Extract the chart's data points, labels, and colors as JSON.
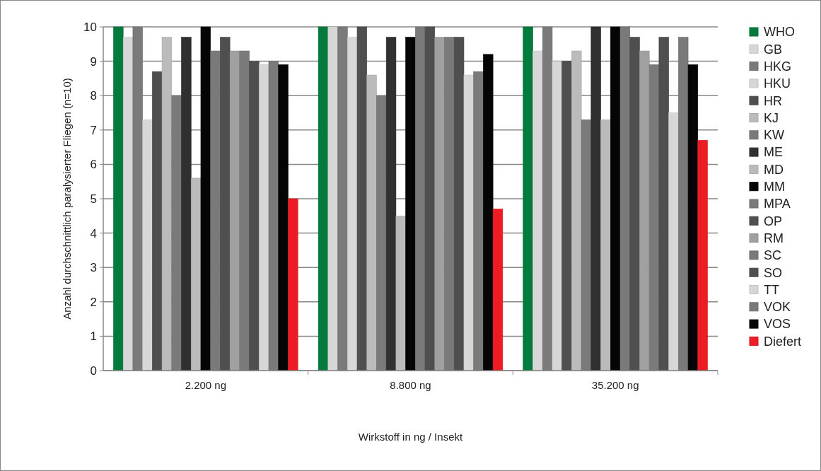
{
  "chart_data": {
    "type": "bar",
    "xlabel": "Wirkstoff in ng / Insekt",
    "ylabel": "Anzahl durchschnittlich paralysierter Fliegen (n=10)",
    "categories": [
      "2.200 ng",
      "8.800 ng",
      "35.200 ng"
    ],
    "ylim": [
      0,
      10
    ],
    "yticks": [
      0,
      1,
      2,
      3,
      4,
      5,
      6,
      7,
      8,
      9,
      10
    ],
    "grid": "y",
    "legend": "right",
    "series": [
      {
        "name": "WHO",
        "color": "#047a3c",
        "values": [
          10,
          10,
          10
        ]
      },
      {
        "name": "GB",
        "color": "#d7d7d7",
        "values": [
          9.7,
          10,
          9.3
        ]
      },
      {
        "name": "HKG",
        "color": "#7a7a7a",
        "values": [
          10,
          10,
          10
        ]
      },
      {
        "name": "HKU",
        "color": "#d7d7d7",
        "values": [
          7.3,
          9.7,
          9.0
        ]
      },
      {
        "name": "HR",
        "color": "#4f4f4f",
        "values": [
          8.7,
          10,
          9.0
        ]
      },
      {
        "name": "KJ",
        "color": "#bbbbbb",
        "values": [
          9.7,
          8.6,
          9.3
        ]
      },
      {
        "name": "KW",
        "color": "#7a7a7a",
        "values": [
          8.0,
          8.0,
          7.3
        ]
      },
      {
        "name": "ME",
        "color": "#2f302f",
        "values": [
          9.7,
          9.7,
          10
        ]
      },
      {
        "name": "MD",
        "color": "#bbbbbb",
        "values": [
          5.6,
          4.5,
          7.3
        ]
      },
      {
        "name": "MM",
        "color": "#050505",
        "values": [
          10,
          9.7,
          10
        ]
      },
      {
        "name": "MPA",
        "color": "#7a7a7a",
        "values": [
          9.3,
          10,
          10
        ]
      },
      {
        "name": "OP",
        "color": "#4f4f4f",
        "values": [
          9.7,
          10,
          9.7
        ]
      },
      {
        "name": "RM",
        "color": "#a0a0a0",
        "values": [
          9.3,
          9.7,
          9.3
        ]
      },
      {
        "name": "SC",
        "color": "#7a7a7a",
        "values": [
          9.3,
          9.7,
          8.9
        ]
      },
      {
        "name": "SO",
        "color": "#4f4f4f",
        "values": [
          9.0,
          9.7,
          9.7
        ]
      },
      {
        "name": "TT",
        "color": "#d7d7d7",
        "values": [
          8.9,
          8.6,
          7.5
        ]
      },
      {
        "name": "VOK",
        "color": "#7a7a7a",
        "values": [
          9.0,
          8.7,
          9.7
        ]
      },
      {
        "name": "VOS",
        "color": "#050505",
        "values": [
          8.9,
          9.2,
          8.9
        ]
      },
      {
        "name": "Diefert",
        "color": "#ed1c24",
        "values": [
          5.0,
          4.7,
          6.7
        ]
      }
    ]
  }
}
